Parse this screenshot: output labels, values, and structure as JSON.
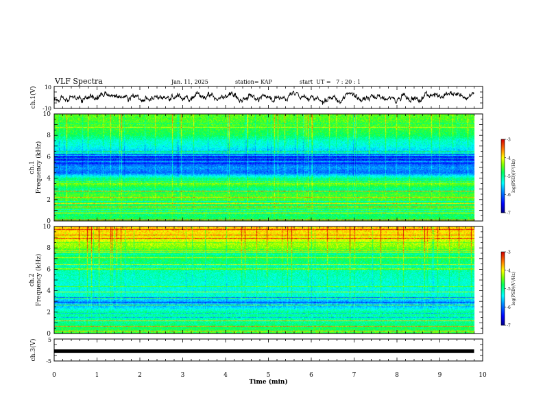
{
  "header": {
    "title": "VLF Spectra",
    "date": "Jan. 11, 2025",
    "station": "station= KAP",
    "start_ut": "start  UT =   7 : 20 : 1"
  },
  "chart_data": [
    {
      "id": "ch1-waveform",
      "type": "line",
      "ylabel": "ch.1(V)",
      "ylim": [
        -10,
        10
      ],
      "ytick_labels": [
        "10",
        "-10"
      ],
      "xlim": [
        0,
        10
      ],
      "series_note": "noisy waveform between about -5 and 5 V"
    },
    {
      "id": "ch1-spectrogram",
      "type": "heatmap",
      "ylabel": "ch.1\nFrequency (kHz)",
      "ylim": [
        0,
        10
      ],
      "yticks": [
        0,
        2,
        4,
        6,
        8,
        10
      ],
      "xlim": [
        0,
        10
      ],
      "data_end_min": 9.8,
      "colorbar": {
        "label": "log(PSD)(V²/Hz)",
        "range": [
          -7,
          -3
        ],
        "ticks": [
          -3,
          -4,
          -5,
          -6,
          -7
        ]
      },
      "freq_profile_kHz_vs_logPSD": [
        [
          0,
          -4.6
        ],
        [
          0.5,
          -4.9
        ],
        [
          1.0,
          -4.6
        ],
        [
          1.5,
          -4.8
        ],
        [
          2.0,
          -4.6
        ],
        [
          2.5,
          -4.6
        ],
        [
          3.0,
          -5.0
        ],
        [
          3.5,
          -4.4
        ],
        [
          4.0,
          -5.0
        ],
        [
          4.5,
          -6.0
        ],
        [
          5.0,
          -5.8
        ],
        [
          5.5,
          -6.2
        ],
        [
          6.0,
          -6.4
        ],
        [
          6.5,
          -5.6
        ],
        [
          7.0,
          -5.3
        ],
        [
          7.5,
          -5.2
        ],
        [
          8.0,
          -4.8
        ],
        [
          9.0,
          -4.6
        ],
        [
          10.0,
          -4.5
        ]
      ]
    },
    {
      "id": "ch2-spectrogram",
      "type": "heatmap",
      "ylabel": "ch.2\nFrequency (kHz)",
      "ylim": [
        0,
        10
      ],
      "yticks": [
        0,
        2,
        4,
        6,
        8,
        10
      ],
      "xlim": [
        0,
        10
      ],
      "data_end_min": 9.8,
      "colorbar": {
        "label": "log(PSD)(V²/Hz)",
        "range": [
          -7,
          -3
        ],
        "ticks": [
          -3,
          -4,
          -5,
          -6,
          -7
        ]
      },
      "freq_profile_kHz_vs_logPSD": [
        [
          0,
          -4.6
        ],
        [
          0.5,
          -4.8
        ],
        [
          1.0,
          -5.0
        ],
        [
          1.5,
          -5.1
        ],
        [
          2.0,
          -5.0
        ],
        [
          2.5,
          -5.6
        ],
        [
          3.0,
          -5.7
        ],
        [
          3.5,
          -5.2
        ],
        [
          4.0,
          -5.3
        ],
        [
          5.0,
          -5.2
        ],
        [
          6.0,
          -5.1
        ],
        [
          7.0,
          -4.8
        ],
        [
          7.5,
          -4.9
        ],
        [
          8.0,
          -4.4
        ],
        [
          9.0,
          -4.0
        ],
        [
          10.0,
          -3.8
        ]
      ]
    },
    {
      "id": "ch3-waveform",
      "type": "line",
      "ylabel": "ch.3(V)",
      "ylim": [
        -5,
        5
      ],
      "ytick_labels": [
        "5",
        "-5"
      ],
      "xlim": [
        0,
        10
      ],
      "xlabel": "Time (min)",
      "xticks": [
        0,
        1,
        2,
        3,
        4,
        5,
        6,
        7,
        8,
        9,
        10
      ],
      "series_note": "near-constant level about -0.5 V"
    }
  ]
}
